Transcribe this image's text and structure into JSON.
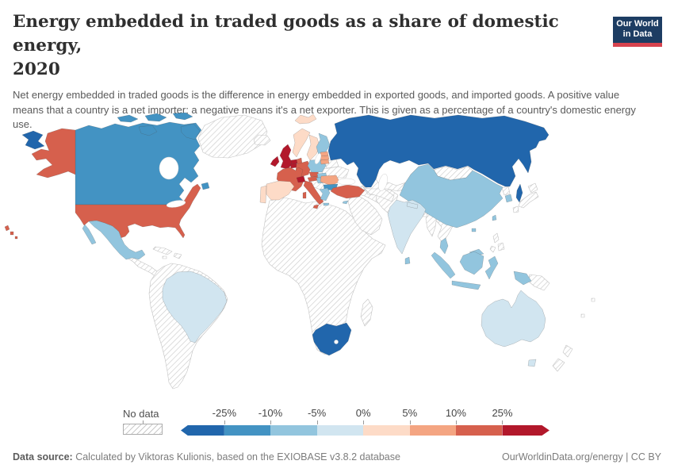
{
  "header": {
    "title_line1": "Energy embedded in traded goods as a share of domestic energy,",
    "title_line2": "2020",
    "subtitle": "Net energy embedded in traded goods is the difference in energy embedded in exported goods, and imported goods. A positive value means that a country is a net importer; a negative means it's a net exporter. This is given as a percentage of a country's domestic energy use.",
    "logo": {
      "line1": "Our World",
      "line2": "in Data",
      "bg_color": "#1d3d63",
      "accent_color": "#d7434e"
    }
  },
  "legend": {
    "no_data_label": "No data",
    "bar_segments": [
      {
        "color": "#2166ac",
        "width_pct": 11.8,
        "arrow": "left",
        "range": "< -25%"
      },
      {
        "color": "#4393c3",
        "width_pct": 12.5,
        "range": "-25% to -10%"
      },
      {
        "color": "#92c5de",
        "width_pct": 12.6,
        "range": "-10% to -5%"
      },
      {
        "color": "#d1e5f0",
        "width_pct": 12.6,
        "range": "-5% to 0%"
      },
      {
        "color": "#fddbc7",
        "width_pct": 12.6,
        "range": "0% to 5%"
      },
      {
        "color": "#f4a582",
        "width_pct": 12.6,
        "range": "5% to 10%"
      },
      {
        "color": "#d6604d",
        "width_pct": 12.5,
        "range": "10% to 25%"
      },
      {
        "color": "#b2182b",
        "width_pct": 12.8,
        "arrow": "right",
        "range": "> 25%"
      }
    ],
    "ticks": [
      {
        "label": "-25%",
        "pos_pct": 11.8
      },
      {
        "label": "-10%",
        "pos_pct": 24.3
      },
      {
        "label": "-5%",
        "pos_pct": 36.9
      },
      {
        "label": "0%",
        "pos_pct": 49.5
      },
      {
        "label": "5%",
        "pos_pct": 62.1
      },
      {
        "label": "10%",
        "pos_pct": 74.6
      },
      {
        "label": "25%",
        "pos_pct": 87.2
      }
    ]
  },
  "footer": {
    "source_label": "Data source:",
    "source_text": " Calculated by Viktoras Kulionis, based on the EXIOBASE v3.8.2 database",
    "right_text": "OurWorldinData.org/energy | CC BY"
  },
  "chart_data": {
    "type": "choropleth_map",
    "title": "Energy embedded in traded goods as a share of domestic energy",
    "year": "2020",
    "unit": "%",
    "legend_position": "bottom",
    "countries": [
      {
        "id": "russia",
        "name": "Russia",
        "color": "#2166ac",
        "value_range": "< -25%"
      },
      {
        "id": "south-africa",
        "name": "South Africa",
        "color": "#2166ac",
        "value_range": "< -25%"
      },
      {
        "id": "canada",
        "name": "Canada",
        "color": "#4393c3",
        "value_range": "-25% to -10%"
      },
      {
        "id": "bulgaria",
        "name": "Bulgaria",
        "color": "#4393c3",
        "value_range": "-25% to -10%"
      },
      {
        "id": "china",
        "name": "China",
        "color": "#92c5de",
        "value_range": "-10% to -5%"
      },
      {
        "id": "mexico",
        "name": "Mexico",
        "color": "#92c5de",
        "value_range": "-10% to -5%"
      },
      {
        "id": "finland",
        "name": "Finland",
        "color": "#92c5de",
        "value_range": "-10% to -5%"
      },
      {
        "id": "poland",
        "name": "Poland",
        "color": "#92c5de",
        "value_range": "-10% to -5%"
      },
      {
        "id": "greece",
        "name": "Greece",
        "color": "#92c5de",
        "value_range": "-10% to -5%"
      },
      {
        "id": "hungary",
        "name": "Hungary",
        "color": "#92c5de",
        "value_range": "-10% to -5%"
      },
      {
        "id": "slovakia",
        "name": "Slovakia",
        "color": "#92c5de",
        "value_range": "-10% to -5%"
      },
      {
        "id": "south-korea",
        "name": "South Korea",
        "color": "#92c5de",
        "value_range": "-10% to -5%"
      },
      {
        "id": "taiwan",
        "name": "Taiwan",
        "color": "#92c5de",
        "value_range": "-10% to -5%"
      },
      {
        "id": "malaysia",
        "name": "Malaysia",
        "color": "#92c5de",
        "value_range": "-10% to -5%"
      },
      {
        "id": "indonesia",
        "name": "Indonesia",
        "color": "#92c5de",
        "value_range": "-10% to -5%"
      },
      {
        "id": "sri-lanka",
        "name": "Sri Lanka",
        "color": "#92c5de",
        "value_range": "-10% to -5%"
      },
      {
        "id": "cyprus",
        "name": "Cyprus",
        "color": "#92c5de",
        "value_range": "-10% to -5%"
      },
      {
        "id": "india",
        "name": "India",
        "color": "#d1e5f0",
        "value_range": "-5% to 0%"
      },
      {
        "id": "brazil",
        "name": "Brazil",
        "color": "#d1e5f0",
        "value_range": "-5% to 0%"
      },
      {
        "id": "australia",
        "name": "Australia",
        "color": "#d1e5f0",
        "value_range": "-5% to 0%"
      },
      {
        "id": "nepal",
        "name": "Nepal",
        "color": "#d1e5f0",
        "value_range": "-5% to 0%"
      },
      {
        "id": "spain",
        "name": "Spain",
        "color": "#fddbc7",
        "value_range": "0% to 5%"
      },
      {
        "id": "portugal",
        "name": "Portugal",
        "color": "#fddbc7",
        "value_range": "0% to 5%"
      },
      {
        "id": "norway",
        "name": "Norway",
        "color": "#fddbc7",
        "value_range": "0% to 5%"
      },
      {
        "id": "sweden",
        "name": "Sweden",
        "color": "#fddbc7",
        "value_range": "0% to 5%"
      },
      {
        "id": "estonia",
        "name": "Estonia",
        "color": "#f4a582",
        "value_range": "5% to 10%"
      },
      {
        "id": "latvia",
        "name": "Latvia",
        "color": "#f4a582",
        "value_range": "5% to 10%"
      },
      {
        "id": "lithuania",
        "name": "Lithuania",
        "color": "#f4a582",
        "value_range": "5% to 10%"
      },
      {
        "id": "romania",
        "name": "Romania",
        "color": "#f4a582",
        "value_range": "5% to 10%"
      },
      {
        "id": "usa",
        "name": "United States",
        "color": "#d6604d",
        "value_range": "10% to 25%"
      },
      {
        "id": "france",
        "name": "France",
        "color": "#d6604d",
        "value_range": "10% to 25%"
      },
      {
        "id": "germany",
        "name": "Germany",
        "color": "#d6604d",
        "value_range": "10% to 25%"
      },
      {
        "id": "italy",
        "name": "Italy",
        "color": "#d6604d",
        "value_range": "10% to 25%"
      },
      {
        "id": "denmark",
        "name": "Denmark",
        "color": "#d6604d",
        "value_range": "10% to 25%"
      },
      {
        "id": "czechia",
        "name": "Czechia",
        "color": "#d6604d",
        "value_range": "10% to 25%"
      },
      {
        "id": "austria",
        "name": "Austria",
        "color": "#d6604d",
        "value_range": "10% to 25%"
      },
      {
        "id": "turkey",
        "name": "Turkey",
        "color": "#d6604d",
        "value_range": "10% to 25%"
      },
      {
        "id": "uk",
        "name": "United Kingdom",
        "color": "#b2182b",
        "value_range": "> 25%"
      },
      {
        "id": "ireland",
        "name": "Ireland",
        "color": "#b2182b",
        "value_range": "> 25%"
      },
      {
        "id": "netherlands",
        "name": "Netherlands",
        "color": "#b2182b",
        "value_range": "> 25%"
      },
      {
        "id": "belgium",
        "name": "Belgium",
        "color": "#b2182b",
        "value_range": "> 25%"
      },
      {
        "id": "switzerland",
        "name": "Switzerland",
        "color": "#b2182b",
        "value_range": "> 25%"
      }
    ],
    "no_data_regions": [
      "Greenland",
      "Iceland",
      "Central America",
      "Caribbean",
      "South America (excl. Brazil)",
      "Africa (excl. South Africa)",
      "Madagascar",
      "Middle East",
      "Arabia",
      "Caucasus",
      "Kazakhstan",
      "Central Asia",
      "Mongolia",
      "Japan",
      "North Korea",
      "Philippines",
      "Papua New Guinea",
      "New Zealand",
      "Ukraine",
      "Belarus",
      "Western Balkans",
      "Myanmar",
      "Indochina",
      "Bangladesh",
      "Afghanistan & Pakistan",
      "Pacific islands"
    ]
  },
  "map": {
    "ocean_color": "#ffffff",
    "hatch_line_color": "#cccccc"
  }
}
